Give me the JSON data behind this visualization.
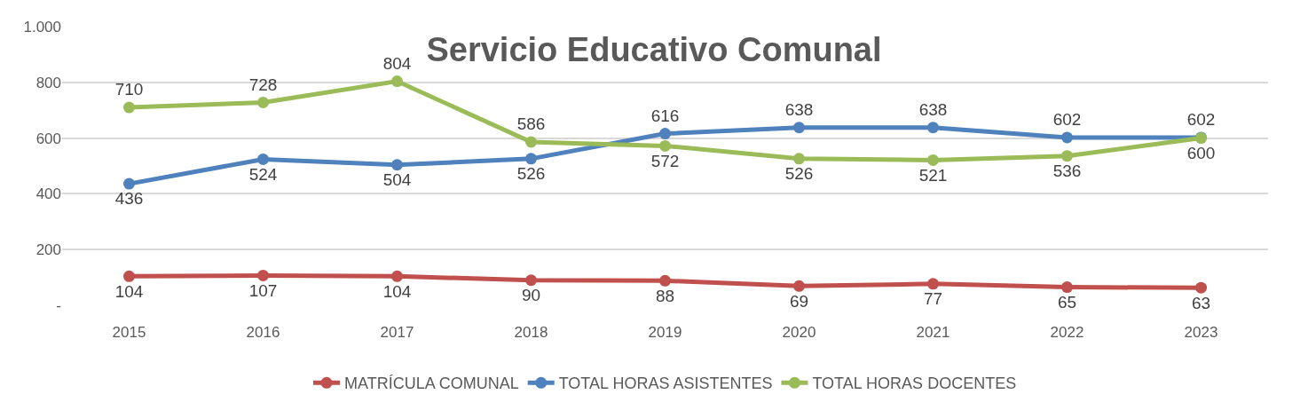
{
  "chart_data": {
    "type": "line",
    "title": "Servicio Educativo Comunal",
    "categories": [
      "2015",
      "2016",
      "2017",
      "2018",
      "2019",
      "2020",
      "2021",
      "2022",
      "2023"
    ],
    "series": [
      {
        "name": "MATRÍCULA COMUNAL",
        "color": "#c0504d",
        "values": [
          104,
          107,
          104,
          90,
          88,
          69,
          77,
          65,
          63
        ]
      },
      {
        "name": "TOTAL HORAS ASISTENTES",
        "color": "#4f81bd",
        "values": [
          436,
          524,
          504,
          526,
          616,
          638,
          638,
          602,
          602
        ]
      },
      {
        "name": "TOTAL HORAS DOCENTES",
        "color": "#9bbb59",
        "values": [
          710,
          728,
          804,
          586,
          572,
          526,
          521,
          536,
          600
        ]
      }
    ],
    "ylim": [
      0,
      1000
    ],
    "yticks": [
      {
        "value": 0,
        "label": "-"
      },
      200,
      400,
      600,
      800,
      {
        "value": 1000,
        "label": "1.000"
      }
    ],
    "grid": "y",
    "legend": "bottom",
    "marker": "circle",
    "line_style": "solid",
    "data_labels": true
  }
}
